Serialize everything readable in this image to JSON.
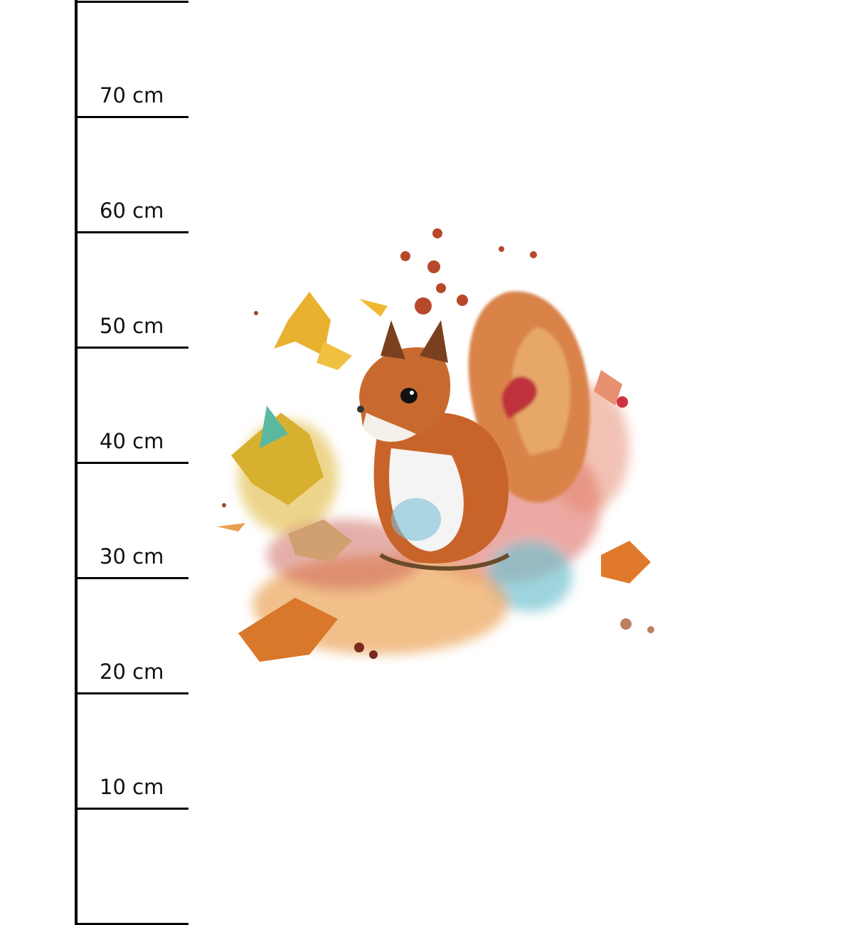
{
  "ruler": {
    "unit": "cm",
    "labels": [
      "70 cm",
      "60 cm",
      "50 cm",
      "40 cm",
      "30 cm",
      "20 cm",
      "10 cm"
    ],
    "line_color": "#000000"
  },
  "illustration": {
    "subject": "squirrel-with-autumn-leaves",
    "colors": {
      "fur": "#c8642a",
      "tail": "#d9834a",
      "leaf_yellow": "#e8b230",
      "leaf_orange": "#d9772b",
      "accent_red": "#c0303a",
      "accent_teal": "#5bb8c8"
    }
  }
}
